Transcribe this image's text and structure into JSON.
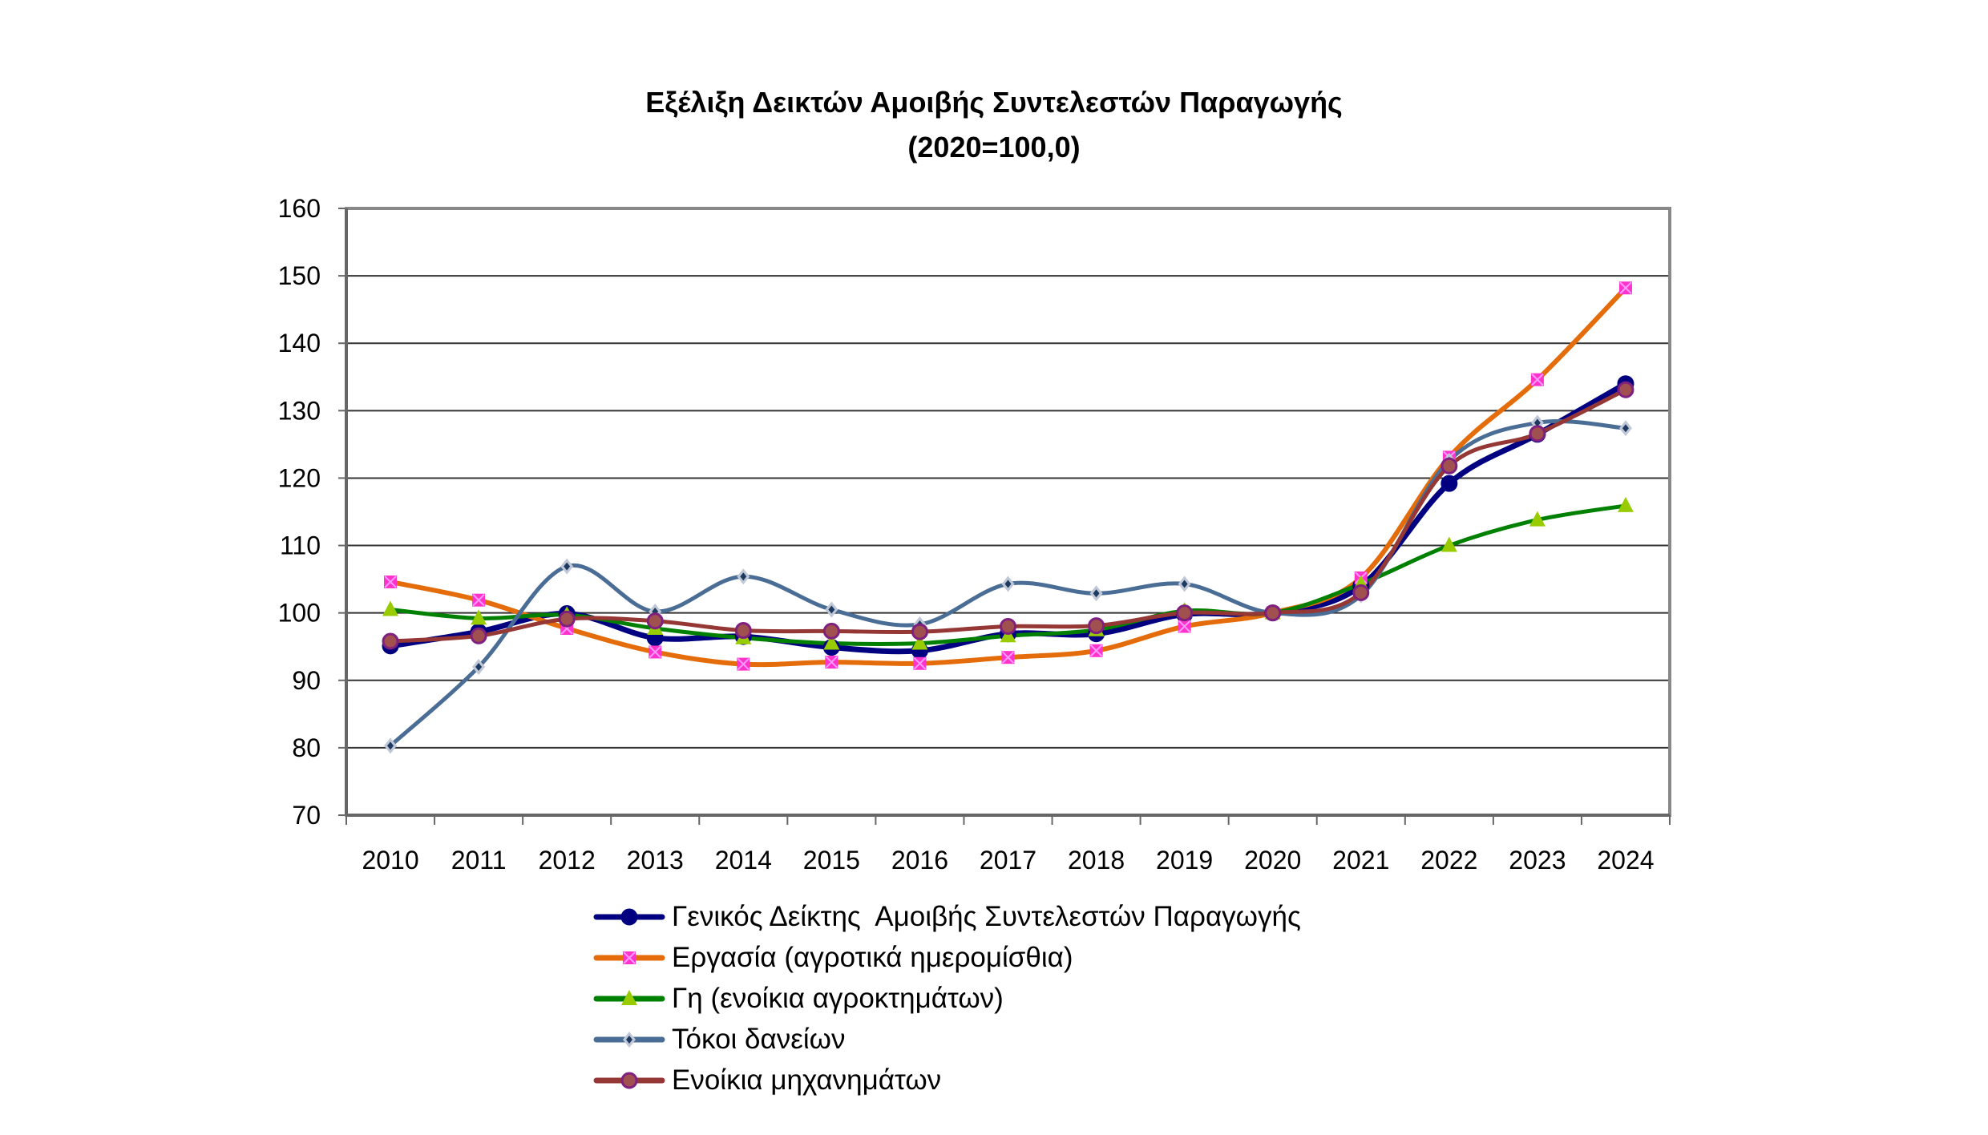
{
  "chart_data": {
    "type": "line",
    "title": "Εξέλιξη Δεικτών Αμοιβής Συντελεστών Παραγωγής",
    "subtitle": "(2020=100,0)",
    "xlabel": "",
    "ylabel": "",
    "ylim": [
      70,
      160
    ],
    "yticks": [
      "70",
      "80",
      "90",
      "100",
      "110",
      "120",
      "130",
      "140",
      "150",
      "160"
    ],
    "grid": true,
    "smooth": true,
    "legend_position": "bottom",
    "categories": [
      "2010",
      "2011",
      "2012",
      "2013",
      "2014",
      "2015",
      "2016",
      "2017",
      "2018",
      "2019",
      "2020",
      "2021",
      "2022",
      "2023",
      "2024"
    ],
    "series": [
      {
        "name": "Γενικός Δείκτης  Αμοιβής Συντελεστών Παραγωγής",
        "color": "#000080",
        "marker": "circle",
        "marker_color": "#000080",
        "values": [
          95.1,
          97.2,
          99.9,
          96.3,
          96.5,
          94.9,
          94.4,
          96.9,
          96.9,
          99.8,
          100.0,
          104.0,
          119.2,
          126.5,
          134.0
        ]
      },
      {
        "name": "Εργασία (αγροτικά ημερομίσθια)",
        "color": "#E46C0A",
        "marker": "square-x",
        "marker_color": "#FF33CC",
        "values": [
          104.6,
          101.9,
          97.7,
          94.2,
          92.4,
          92.7,
          92.5,
          93.4,
          94.4,
          98.0,
          100.0,
          105.2,
          123.1,
          134.6,
          148.2
        ]
      },
      {
        "name": "Γη (ενοίκια αγροκτημάτων)",
        "color": "#008000",
        "marker": "triangle",
        "marker_color": "#99CC00",
        "values": [
          100.5,
          99.2,
          99.7,
          97.7,
          96.3,
          95.5,
          95.5,
          96.6,
          97.5,
          100.3,
          100.0,
          104.3,
          110.0,
          113.8,
          115.9
        ]
      },
      {
        "name": "Τόκοι δανείων",
        "color": "#4A6D96",
        "marker": "diamond",
        "marker_color": "#1F3A60",
        "values": [
          80.3,
          92.0,
          106.9,
          100.2,
          105.4,
          100.5,
          98.3,
          104.3,
          102.9,
          104.3,
          100.0,
          102.6,
          122.6,
          128.2,
          127.4
        ]
      },
      {
        "name": "Ενοίκια μηχανημάτων",
        "color": "#953735",
        "marker": "circle",
        "marker_color": "#7F1F7F",
        "values": [
          95.8,
          96.6,
          99.1,
          98.8,
          97.4,
          97.3,
          97.2,
          98.0,
          98.1,
          100.0,
          100.0,
          103.0,
          121.8,
          126.6,
          133.1
        ]
      }
    ]
  }
}
